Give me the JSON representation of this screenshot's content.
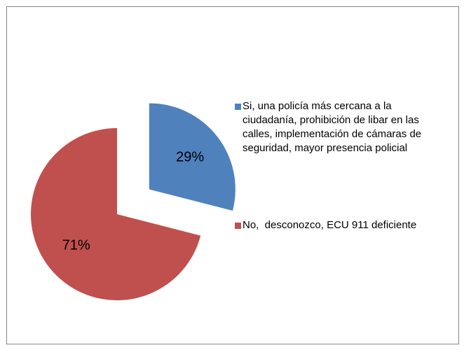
{
  "chart_data": {
    "type": "pie",
    "categories": [
      "Si, una policía más cercana a la ciudadanía, prohibición de libar en las calles, implementación de cámaras de seguridad, mayor presencia policial",
      "No,  desconozco, ECU 911 deficiente"
    ],
    "values": [
      29,
      71
    ],
    "value_labels": [
      "29%",
      "71%"
    ],
    "colors": [
      "#4f81bd",
      "#c0504d"
    ],
    "exploded": [
      true,
      false
    ],
    "legend": "right"
  }
}
